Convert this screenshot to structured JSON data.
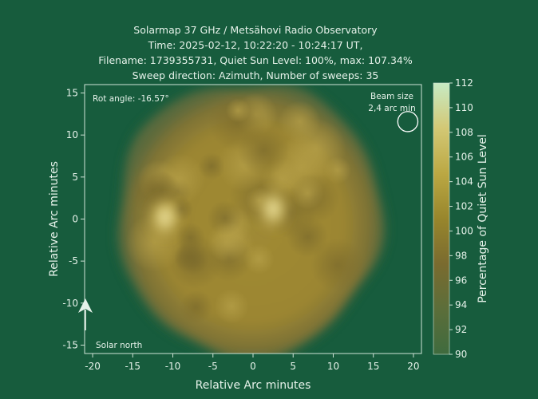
{
  "header": {
    "title_lines": [
      "Solarmap 37 GHz / Metsähovi Radio Observatory",
      "Time: 2025-02-12, 10:22:20 - 10:24:17 UT,",
      "Filename: 1739355731, Quiet Sun Level: 100%, max: 107.34%",
      "Sweep direction: Azimuth, Number of sweeps: 35"
    ]
  },
  "chart_data": {
    "type": "heatmap",
    "xlabel": "Relative Arc minutes",
    "ylabel": "Relative Arc minutes",
    "xlim": [
      -21,
      21
    ],
    "ylim": [
      -16,
      16
    ],
    "x_ticks": [
      -20,
      -15,
      -10,
      -5,
      0,
      5,
      10,
      15,
      20
    ],
    "y_ticks": [
      15,
      10,
      5,
      0,
      -5,
      -10,
      -15
    ],
    "grid": false,
    "colorbar": {
      "label": "Percentage of Quiet Sun Level",
      "range": [
        90,
        112
      ],
      "ticks": [
        112,
        110,
        108,
        106,
        104,
        102,
        100,
        98,
        96,
        94,
        92,
        90
      ],
      "colors": [
        "#3f6b3e",
        "#5c6e3a",
        "#7a6b2f",
        "#98862c",
        "#bba843",
        "#d3c875",
        "#c7ebc4"
      ]
    },
    "disk": {
      "center": [
        -0.5,
        0
      ],
      "radius_arcmin": 16.2,
      "base_level": 100,
      "max_level": 107.34
    },
    "bright_regions": [
      {
        "x": -11,
        "y": 0.2,
        "level": 107.3
      },
      {
        "x": 2.5,
        "y": 1.2,
        "level": 107.0
      }
    ],
    "annotations": {
      "rot_angle": "Rot angle: -16.57°",
      "beam_size_line1": "Beam size",
      "beam_size_line2": "2,4 arc min",
      "beam_circle": {
        "x": 19.3,
        "y": 11.6,
        "diameter_arcmin": 2.4
      },
      "solar_north": "Solar north"
    }
  }
}
